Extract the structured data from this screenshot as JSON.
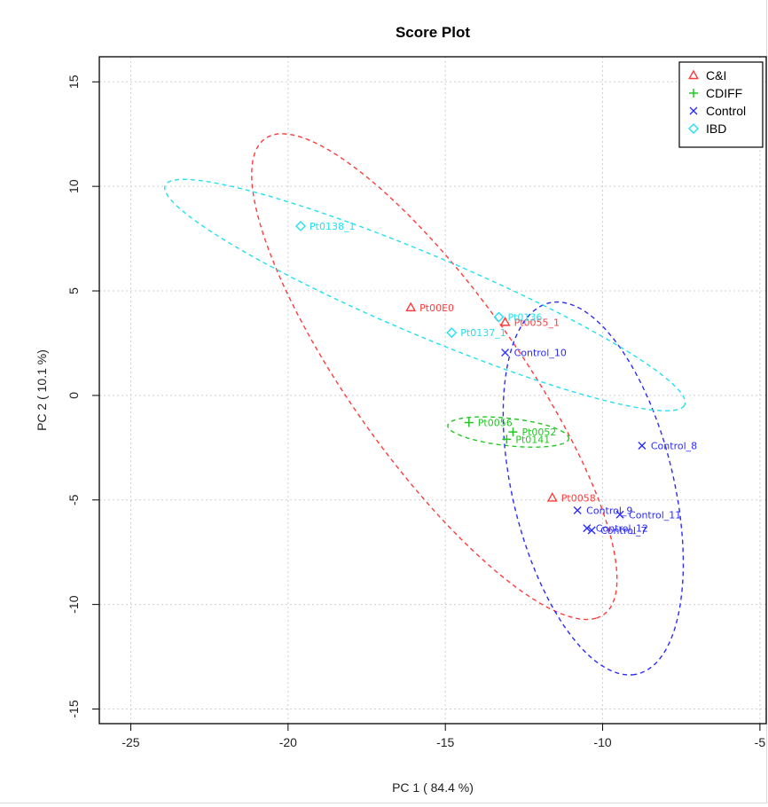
{
  "chart_data": {
    "type": "scatter",
    "title": "Score Plot",
    "xlabel": "PC 1 ( 84.4 %)",
    "ylabel": "PC 2 ( 10.1 %)",
    "xlim": [
      -26,
      -4.8
    ],
    "ylim": [
      -15.7,
      16.2
    ],
    "x_ticks": [
      -25,
      -20,
      -15,
      -10,
      -5
    ],
    "y_ticks": [
      15,
      10,
      5,
      0,
      -5,
      -10,
      -15
    ],
    "grid": true,
    "legend_position": "top-right",
    "series": [
      {
        "name": "C&I",
        "marker": "triangle",
        "color": "#ff3b3b",
        "points": [
          {
            "x": -16.1,
            "y": 4.2,
            "label": "Pt00E0"
          },
          {
            "x": -13.1,
            "y": 3.5,
            "label": "Pt0055_1"
          },
          {
            "x": -11.6,
            "y": -4.9,
            "label": "Pt0058"
          }
        ],
        "ellipse": {
          "cx": -15.35,
          "cy": 0.9,
          "rx": 12.65,
          "ry": 2.95,
          "angle_deg": -66
        }
      },
      {
        "name": "CDIFF",
        "marker": "plus",
        "color": "#22c822",
        "points": [
          {
            "x": -14.25,
            "y": -1.3,
            "label": "Pt0056"
          },
          {
            "x": -12.85,
            "y": -1.75,
            "label": "Pt0052"
          },
          {
            "x": -13.05,
            "y": -2.1,
            "label": "Pt0141"
          }
        ],
        "ellipse": {
          "cx": -13.0,
          "cy": -1.75,
          "rx": 1.95,
          "ry": 0.65,
          "angle_deg": -10
        }
      },
      {
        "name": "Control",
        "marker": "cross",
        "color": "#2b2bff",
        "points": [
          {
            "x": -13.1,
            "y": 2.05,
            "label": "Control_10"
          },
          {
            "x": -8.75,
            "y": -2.4,
            "label": "Control_8"
          },
          {
            "x": -10.8,
            "y": -5.5,
            "label": "Control_9"
          },
          {
            "x": -9.45,
            "y": -5.7,
            "label": "Control_11"
          },
          {
            "x": -10.5,
            "y": -6.35,
            "label": "Control_12"
          },
          {
            "x": -10.35,
            "y": -6.45,
            "label": "Control_7"
          }
        ],
        "ellipse": {
          "cx": -10.3,
          "cy": -4.45,
          "rx": 9.0,
          "ry": 2.6,
          "angle_deg": -82
        }
      },
      {
        "name": "IBD",
        "marker": "diamond",
        "color": "#22e0f0",
        "points": [
          {
            "x": -19.6,
            "y": 8.1,
            "label": "Pt0138_1"
          },
          {
            "x": -14.8,
            "y": 3.0,
            "label": "Pt0137_1"
          },
          {
            "x": -13.3,
            "y": 3.75,
            "label": "Pt0136"
          }
        ],
        "ellipse": {
          "cx": -15.65,
          "cy": 4.8,
          "rx": 9.8,
          "ry": 1.75,
          "angle_deg": -33
        }
      }
    ]
  }
}
